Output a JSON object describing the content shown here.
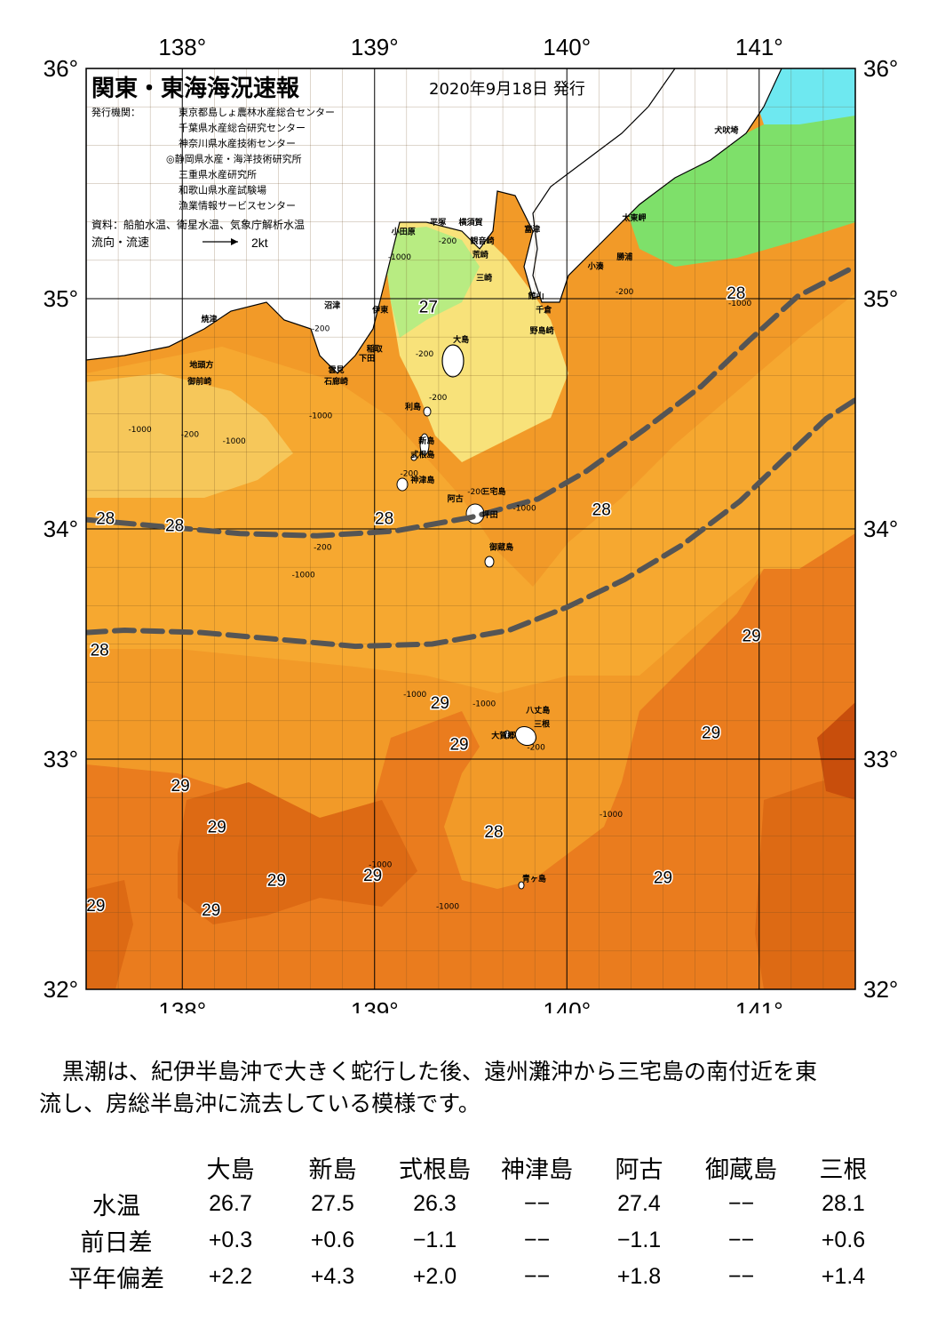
{
  "map": {
    "title": "関東・東海海況速報",
    "date": "2020年9月18日 発行",
    "issuer_label": "発行機関：",
    "issuers": [
      "東京都島しょ農林水産総合センター",
      "千葉県水産総合研究センター",
      "神奈川県水産技術センター",
      "◎静岡県水産・海洋技術研究所",
      "三重県水産研究所",
      "和歌山県水産試験場",
      "漁業情報サービスセンター"
    ],
    "source": "資料：船舶水温、衛星水温、気象庁解析水温",
    "legend_label": "流向・流速",
    "legend_value": "2kt",
    "lon_labels": [
      "138°",
      "139°",
      "140°",
      "141°"
    ],
    "lat_labels": [
      "36°",
      "35°",
      "34°",
      "33°",
      "32°"
    ],
    "lon_range": [
      137.5,
      141.5
    ],
    "lat_range": [
      32,
      36
    ],
    "colors": {
      "c27": "#f8e27a",
      "c27b": "#f6c75a",
      "c28": "#f6a830",
      "c28b": "#f29a28",
      "c29": "#ea7c1e",
      "c29b": "#dd6a14",
      "c30": "#c84e0c",
      "green1": "#7ee06a",
      "green2": "#b8ec82",
      "cyan": "#6ee8f0",
      "land": "#ffffff",
      "kuroshio": "#555555"
    },
    "place_names": [
      {
        "text": "犬吠埼",
        "lon": 140.83,
        "lat": 35.72
      },
      {
        "text": "太東岬",
        "lon": 140.35,
        "lat": 35.34
      },
      {
        "text": "勝浦",
        "lon": 140.3,
        "lat": 35.17
      },
      {
        "text": "小湊",
        "lon": 140.15,
        "lat": 35.13
      },
      {
        "text": "小田原",
        "lon": 139.15,
        "lat": 35.28
      },
      {
        "text": "平塚",
        "lon": 139.33,
        "lat": 35.32
      },
      {
        "text": "横須賀",
        "lon": 139.5,
        "lat": 35.32
      },
      {
        "text": "観音崎",
        "lon": 139.56,
        "lat": 35.24
      },
      {
        "text": "荒崎",
        "lon": 139.55,
        "lat": 35.18
      },
      {
        "text": "三崎",
        "lon": 139.57,
        "lat": 35.08
      },
      {
        "text": "富津",
        "lon": 139.82,
        "lat": 35.29
      },
      {
        "text": "館山",
        "lon": 139.84,
        "lat": 35.0
      },
      {
        "text": "千倉",
        "lon": 139.88,
        "lat": 34.94
      },
      {
        "text": "野島崎",
        "lon": 139.87,
        "lat": 34.85
      },
      {
        "text": "焼津",
        "lon": 138.14,
        "lat": 34.9
      },
      {
        "text": "沼津",
        "lon": 138.78,
        "lat": 34.96
      },
      {
        "text": "伊東",
        "lon": 139.03,
        "lat": 34.94
      },
      {
        "text": "稲取",
        "lon": 139.0,
        "lat": 34.77
      },
      {
        "text": "下田",
        "lon": 138.96,
        "lat": 34.73
      },
      {
        "text": "雲見",
        "lon": 138.8,
        "lat": 34.68
      },
      {
        "text": "石廊崎",
        "lon": 138.8,
        "lat": 34.63
      },
      {
        "text": "地頭方",
        "lon": 138.1,
        "lat": 34.7
      },
      {
        "text": "御前崎",
        "lon": 138.09,
        "lat": 34.63
      },
      {
        "text": "大島",
        "lon": 139.45,
        "lat": 34.81
      },
      {
        "text": "利島",
        "lon": 139.2,
        "lat": 34.52
      },
      {
        "text": "新島",
        "lon": 139.27,
        "lat": 34.37
      },
      {
        "text": "式根島",
        "lon": 139.25,
        "lat": 34.31
      },
      {
        "text": "神津島",
        "lon": 139.25,
        "lat": 34.2
      },
      {
        "text": "三宅島",
        "lon": 139.62,
        "lat": 34.15
      },
      {
        "text": "阿古",
        "lon": 139.42,
        "lat": 34.12
      },
      {
        "text": "坪田",
        "lon": 139.6,
        "lat": 34.05
      },
      {
        "text": "御蔵島",
        "lon": 139.66,
        "lat": 33.91
      },
      {
        "text": "八丈島",
        "lon": 139.85,
        "lat": 33.2
      },
      {
        "text": "三根",
        "lon": 139.87,
        "lat": 33.14
      },
      {
        "text": "大賀郷",
        "lon": 139.67,
        "lat": 33.09
      },
      {
        "text": "青ヶ島",
        "lon": 139.83,
        "lat": 32.47
      }
    ],
    "isotherm_labels": [
      {
        "text": "27",
        "lon": 139.28,
        "lat": 34.96
      },
      {
        "text": "28",
        "lon": 140.88,
        "lat": 35.02
      },
      {
        "text": "28",
        "lon": 137.6,
        "lat": 34.04
      },
      {
        "text": "28",
        "lon": 137.96,
        "lat": 34.01
      },
      {
        "text": "28",
        "lon": 139.05,
        "lat": 34.04
      },
      {
        "text": "28",
        "lon": 140.18,
        "lat": 34.08
      },
      {
        "text": "28",
        "lon": 137.57,
        "lat": 33.47
      },
      {
        "text": "29",
        "lon": 140.96,
        "lat": 33.53
      },
      {
        "text": "29",
        "lon": 139.34,
        "lat": 33.24
      },
      {
        "text": "29",
        "lon": 139.44,
        "lat": 33.06
      },
      {
        "text": "29",
        "lon": 140.75,
        "lat": 33.11
      },
      {
        "text": "29",
        "lon": 137.99,
        "lat": 32.88
      },
      {
        "text": "29",
        "lon": 138.18,
        "lat": 32.7
      },
      {
        "text": "28",
        "lon": 139.62,
        "lat": 32.68
      },
      {
        "text": "29",
        "lon": 138.49,
        "lat": 32.47
      },
      {
        "text": "29",
        "lon": 138.99,
        "lat": 32.49
      },
      {
        "text": "29",
        "lon": 140.5,
        "lat": 32.48
      },
      {
        "text": "29",
        "lon": 137.55,
        "lat": 32.36
      },
      {
        "text": "29",
        "lon": 138.15,
        "lat": 32.34
      }
    ],
    "depth_labels": [
      {
        "text": "-1000",
        "lon": 139.13,
        "lat": 35.17
      },
      {
        "text": "-200",
        "lon": 139.38,
        "lat": 35.24
      },
      {
        "text": "-200",
        "lon": 140.3,
        "lat": 35.02
      },
      {
        "text": "-1000",
        "lon": 140.9,
        "lat": 34.97
      },
      {
        "text": "-200",
        "lon": 138.72,
        "lat": 34.86
      },
      {
        "text": "-200",
        "lon": 139.26,
        "lat": 34.75
      },
      {
        "text": "-200",
        "lon": 139.33,
        "lat": 34.56
      },
      {
        "text": "-1000",
        "lon": 138.72,
        "lat": 34.48
      },
      {
        "text": "-1000",
        "lon": 137.78,
        "lat": 34.42
      },
      {
        "text": "-200",
        "lon": 138.04,
        "lat": 34.4
      },
      {
        "text": "-1000",
        "lon": 138.27,
        "lat": 34.37
      },
      {
        "text": "-200",
        "lon": 139.18,
        "lat": 34.23
      },
      {
        "text": "-200",
        "lon": 139.53,
        "lat": 34.15
      },
      {
        "text": "-1000",
        "lon": 139.78,
        "lat": 34.08
      },
      {
        "text": "-200",
        "lon": 138.73,
        "lat": 33.91
      },
      {
        "text": "-1000",
        "lon": 138.63,
        "lat": 33.79
      },
      {
        "text": "-1000",
        "lon": 139.21,
        "lat": 33.27
      },
      {
        "text": "-1000",
        "lon": 139.57,
        "lat": 33.23
      },
      {
        "text": "-200",
        "lon": 139.84,
        "lat": 33.04
      },
      {
        "text": "-1000",
        "lon": 140.23,
        "lat": 32.75
      },
      {
        "text": "-1000",
        "lon": 139.03,
        "lat": 32.53
      },
      {
        "text": "-1000",
        "lon": 139.38,
        "lat": 32.35
      }
    ],
    "kuroshio_paths": [
      [
        [
          137.5,
          34.04
        ],
        [
          137.9,
          34.01
        ],
        [
          138.3,
          33.98
        ],
        [
          138.7,
          33.97
        ],
        [
          139.1,
          33.99
        ],
        [
          139.5,
          34.05
        ],
        [
          139.85,
          34.13
        ],
        [
          140.1,
          34.25
        ],
        [
          140.4,
          34.43
        ],
        [
          140.7,
          34.62
        ],
        [
          140.95,
          34.82
        ],
        [
          141.2,
          35.01
        ],
        [
          141.5,
          35.14
        ]
      ],
      [
        [
          137.5,
          33.55
        ],
        [
          137.7,
          33.56
        ],
        [
          138.1,
          33.55
        ],
        [
          138.5,
          33.52
        ],
        [
          138.9,
          33.49
        ],
        [
          139.3,
          33.5
        ],
        [
          139.7,
          33.56
        ],
        [
          140.0,
          33.66
        ],
        [
          140.3,
          33.78
        ],
        [
          140.6,
          33.93
        ],
        [
          140.9,
          34.12
        ],
        [
          141.15,
          34.32
        ],
        [
          141.35,
          34.48
        ],
        [
          141.5,
          34.56
        ]
      ]
    ]
  },
  "description": {
    "line1": "黒潮は、紀伊半島沖で大きく蛇行した後、遠州灘沖から三宅島の南付近を東",
    "line2": "流し、房総半島沖に流去している模様です。"
  },
  "table": {
    "columns": [
      "大島",
      "新島",
      "式根島",
      "神津島",
      "阿古",
      "御蔵島",
      "三根"
    ],
    "rows": [
      {
        "label": "水温",
        "values": [
          "26.7",
          "27.5",
          "26.3",
          "−−",
          "27.4",
          "−−",
          "28.1"
        ]
      },
      {
        "label": "前日差",
        "values": [
          "+0.3",
          "+0.6",
          "−1.1",
          "−−",
          "−1.1",
          "−−",
          "+0.6"
        ]
      },
      {
        "label": "平年偏差",
        "values": [
          "+2.2",
          "+4.3",
          "+2.0",
          "−−",
          "+1.8",
          "−−",
          "+1.4"
        ]
      }
    ]
  }
}
